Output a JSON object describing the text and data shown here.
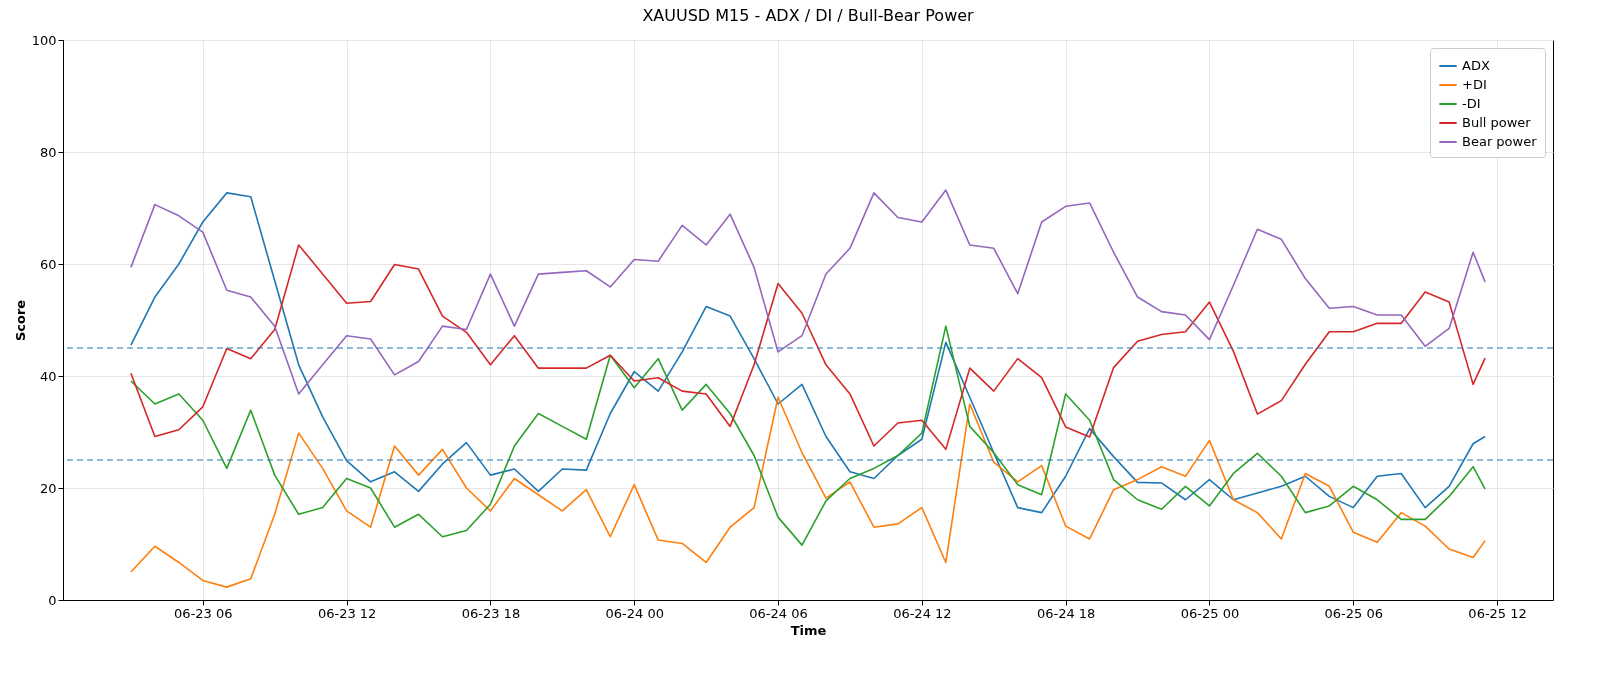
{
  "chart_data": {
    "type": "line",
    "title": "XAUUSD M15 - ADX / DI / Bull-Bear Power",
    "xlabel": "Time",
    "ylabel": "Score",
    "x": [
      "--06-23T03:00",
      "--06-23T04:00",
      "--06-23T05:00",
      "--06-23T06:00",
      "--06-23T07:00",
      "--06-23T08:00",
      "--06-23T09:00",
      "--06-23T10:00",
      "--06-23T11:00",
      "--06-23T12:00",
      "--06-23T13:00",
      "--06-23T14:00",
      "--06-23T15:00",
      "--06-23T16:00",
      "--06-23T17:00",
      "--06-23T18:00",
      "--06-23T19:00",
      "--06-23T20:00",
      "--06-23T21:00",
      "--06-23T22:00",
      "--06-23T23:00",
      "--06-24T00:00",
      "--06-24T01:00",
      "--06-24T02:00",
      "--06-24T03:00",
      "--06-24T04:00",
      "--06-24T05:00",
      "--06-24T06:00",
      "--06-24T07:00",
      "--06-24T08:00",
      "--06-24T09:00",
      "--06-24T10:00",
      "--06-24T11:00",
      "--06-24T12:00",
      "--06-24T13:00",
      "--06-24T14:00",
      "--06-24T15:00",
      "--06-24T16:00",
      "--06-24T17:00",
      "--06-24T18:00",
      "--06-24T19:00",
      "--06-24T20:00",
      "--06-24T21:00",
      "--06-24T22:00",
      "--06-24T23:00",
      "--06-25T00:00",
      "--06-25T01:00",
      "--06-25T02:00",
      "--06-25T03:00",
      "--06-25T04:00",
      "--06-25T05:00",
      "--06-25T06:00",
      "--06-25T07:00",
      "--06-25T08:00",
      "--06-25T09:00",
      "--06-25T10:00",
      "--06-25T11:00",
      "--06-25T11:30"
    ],
    "series": [
      {
        "name": "ADX",
        "color": "#1f77b4",
        "values": [
          45.5,
          54.1,
          60,
          67.5,
          72.7,
          72,
          57,
          42,
          32.7,
          24.9,
          21.1,
          22.9,
          19.4,
          24.3,
          28.1,
          22.3,
          23.4,
          19.4,
          23.4,
          23.2,
          33.3,
          40.8,
          37.3,
          44.3,
          52.4,
          50.7,
          43.1,
          35,
          38.5,
          29.2,
          22.9,
          21.7,
          25.8,
          28.7,
          46,
          36.2,
          26.3,
          16.5,
          15.6,
          22.1,
          30.6,
          25.6,
          21,
          20.9,
          17.9,
          21.5,
          17.9,
          19.1,
          20.3,
          22.1,
          18.5,
          16.5,
          22.1,
          22.6,
          16.5,
          20.3,
          27.9,
          29.2
        ]
      },
      {
        "name": "+DI",
        "color": "#ff7f0e",
        "values": [
          5,
          9.6,
          6.7,
          3.5,
          2.3,
          3.8,
          15.3,
          29.8,
          23.5,
          15.9,
          13,
          27.5,
          22.3,
          26.9,
          20,
          15.9,
          21.7,
          18.8,
          15.9,
          19.7,
          11.3,
          20.6,
          10.7,
          10.1,
          6.7,
          13,
          16.5,
          36.2,
          26.3,
          18.2,
          21.1,
          13,
          13.6,
          16.5,
          6.7,
          35,
          24.6,
          21.1,
          24,
          13.2,
          10.9,
          19.7,
          21.5,
          23.8,
          22.1,
          28.5,
          17.9,
          15.6,
          10.9,
          22.6,
          20.3,
          12.1,
          10.3,
          15.6,
          13.2,
          9.1,
          7.6,
          10.6
        ]
      },
      {
        "name": "-DI",
        "color": "#2ca02c",
        "values": [
          39.1,
          35,
          36.8,
          32.1,
          23.5,
          33.9,
          22.3,
          15.3,
          16.5,
          21.7,
          20,
          13,
          15.3,
          11.3,
          12.4,
          17.1,
          27.5,
          33.3,
          31,
          28.7,
          43.7,
          37.9,
          43.1,
          33.9,
          38.5,
          33.3,
          25.8,
          14.8,
          9.8,
          17.7,
          21.7,
          23.5,
          25.8,
          29.8,
          48.9,
          31,
          26.3,
          20.6,
          18.8,
          36.8,
          32.1,
          21.5,
          17.9,
          16.2,
          20.3,
          16.8,
          22.6,
          26.2,
          22.1,
          15.6,
          16.8,
          20.3,
          17.9,
          14.4,
          14.4,
          18.5,
          23.8,
          19.8
        ]
      },
      {
        "name": "Bull power",
        "color": "#d62728",
        "values": [
          40.5,
          29.2,
          30.4,
          34.5,
          44.9,
          43.1,
          48.3,
          63.4,
          58.2,
          53,
          53.3,
          59.9,
          59.1,
          50.7,
          47.8,
          42,
          47.2,
          41.4,
          41.4,
          41.4,
          43.7,
          39.1,
          39.7,
          37.3,
          36.8,
          31,
          42,
          56.5,
          51.2,
          42,
          36.8,
          27.5,
          31.6,
          32.1,
          26.9,
          41.4,
          37.3,
          43.1,
          39.7,
          30.9,
          29.1,
          41.5,
          46.2,
          47.4,
          47.9,
          53.2,
          44.4,
          33.2,
          35.6,
          42.1,
          47.9,
          47.9,
          49.4,
          49.4,
          55,
          53.2,
          38.5,
          43.2
        ]
      },
      {
        "name": "Bear power",
        "color": "#9467bd",
        "values": [
          59.4,
          70.6,
          68.6,
          65.7,
          55.3,
          54.1,
          48.9,
          36.8,
          42,
          47.2,
          46.6,
          40.2,
          42.6,
          48.9,
          48.3,
          58.2,
          48.9,
          58.2,
          58.5,
          58.8,
          55.9,
          60.8,
          60.5,
          66.9,
          63.4,
          68.9,
          59.4,
          44.3,
          47.2,
          58.2,
          62.8,
          72.7,
          68.3,
          67.5,
          73.2,
          63.4,
          62.8,
          54.7,
          67.5,
          70.3,
          70.9,
          62.1,
          54.1,
          51.5,
          50.9,
          46.5,
          56.2,
          66.2,
          64.4,
          57.4,
          52.1,
          52.4,
          50.9,
          50.9,
          45.3,
          48.5,
          62.1,
          56.8
        ]
      }
    ],
    "xlim": [
      "--06-23T00:10",
      "--06-25T14:20"
    ],
    "xticks": [
      {
        "value": "--06-23T06:00",
        "label": "06-23 06"
      },
      {
        "value": "--06-23T12:00",
        "label": "06-23 12"
      },
      {
        "value": "--06-23T18:00",
        "label": "06-23 18"
      },
      {
        "value": "--06-24T00:00",
        "label": "06-24 00"
      },
      {
        "value": "--06-24T06:00",
        "label": "06-24 06"
      },
      {
        "value": "--06-24T12:00",
        "label": "06-24 12"
      },
      {
        "value": "--06-24T18:00",
        "label": "06-24 18"
      },
      {
        "value": "--06-25T00:00",
        "label": "06-25 00"
      },
      {
        "value": "--06-25T06:00",
        "label": "06-25 06"
      },
      {
        "value": "--06-25T12:00",
        "label": "06-25 12"
      }
    ],
    "ylim": [
      0,
      100
    ],
    "yticks": [
      0,
      20,
      40,
      60,
      80,
      100
    ],
    "ref_lines": [
      {
        "axis": "y",
        "value": 45,
        "color": "#1f77b4",
        "line_style": "dashed"
      },
      {
        "axis": "y",
        "value": 25,
        "color": "#1f77b4",
        "line_style": "dashed"
      }
    ],
    "grid": true,
    "legend": "top right",
    "line_style": "solid"
  }
}
